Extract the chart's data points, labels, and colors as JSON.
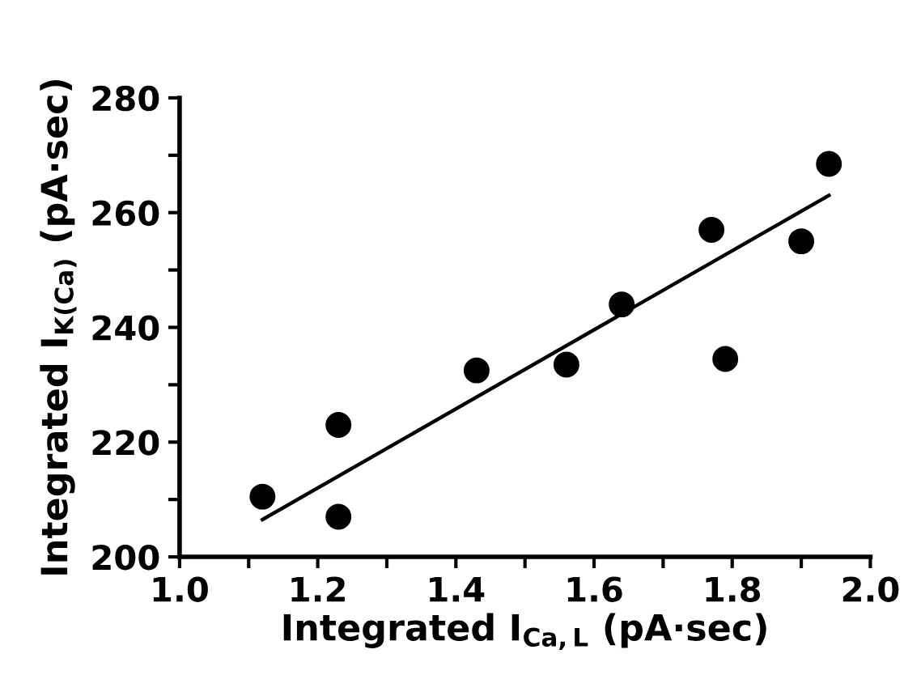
{
  "chart_data": {
    "type": "scatter",
    "xlabel": "Integrated I$_{Ca,L}$ (pA·sec)",
    "ylabel": "Integrated I$_{K(Ca)}$ (pA·sec)",
    "xlim": [
      1.0,
      2.0
    ],
    "ylim": [
      200,
      280
    ],
    "xticks": [
      {
        "value": 1.0,
        "label": "1.0"
      },
      {
        "value": 1.1,
        "label": null
      },
      {
        "value": 1.2,
        "label": "1.2"
      },
      {
        "value": 1.3,
        "label": null
      },
      {
        "value": 1.4,
        "label": "1.4"
      },
      {
        "value": 1.5,
        "label": null
      },
      {
        "value": 1.6,
        "label": "1.6"
      },
      {
        "value": 1.7,
        "label": null
      },
      {
        "value": 1.8,
        "label": "1.8"
      },
      {
        "value": 1.9,
        "label": null
      },
      {
        "value": 2.0,
        "label": "2.0"
      }
    ],
    "yticks": [
      200,
      {
        "value": 210,
        "label": null
      },
      220,
      {
        "value": 230,
        "label": null
      },
      240,
      {
        "value": 250,
        "label": null
      },
      260,
      {
        "value": 270,
        "label": null
      },
      280
    ],
    "marker": "circle",
    "grid": false,
    "legend": false,
    "series": [
      {
        "color": "#000000",
        "x": [
          1.12,
          1.23,
          1.23,
          1.43,
          1.56,
          1.64,
          1.77,
          1.79,
          1.9,
          1.94
        ],
        "values": [
          210.5,
          223,
          207,
          232.5,
          233.5,
          244,
          257,
          234.5,
          255,
          268.5
        ]
      },
      {
        "type": "line",
        "marker": "none",
        "color": "#000000",
        "x": [
          1.12,
          1.94
        ],
        "values": [
          206.5,
          263
        ]
      }
    ]
  }
}
